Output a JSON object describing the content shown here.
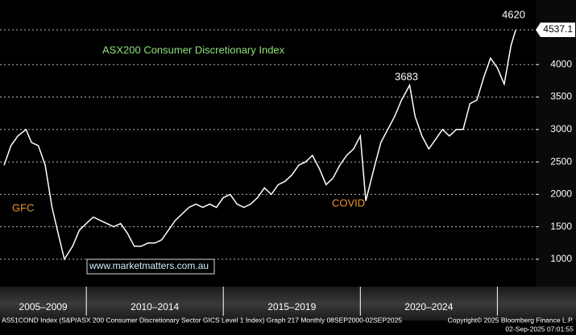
{
  "chart_data": {
    "type": "line",
    "title": "ASX200 Consumer Discretionary Index",
    "x": [
      2007.0,
      2007.25,
      2007.5,
      2007.8,
      2008.0,
      2008.25,
      2008.5,
      2008.75,
      2009.0,
      2009.2,
      2009.5,
      2009.75,
      2010.0,
      2010.25,
      2010.5,
      2010.75,
      2011.0,
      2011.25,
      2011.5,
      2011.75,
      2012.0,
      2012.25,
      2012.5,
      2012.75,
      2013.0,
      2013.25,
      2013.5,
      2013.75,
      2014.0,
      2014.25,
      2014.5,
      2014.75,
      2015.0,
      2015.25,
      2015.5,
      2015.75,
      2016.0,
      2016.25,
      2016.5,
      2016.75,
      2017.0,
      2017.25,
      2017.5,
      2017.75,
      2018.0,
      2018.25,
      2018.5,
      2018.75,
      2019.0,
      2019.25,
      2019.5,
      2019.75,
      2020.0,
      2020.2,
      2020.5,
      2020.75,
      2021.0,
      2021.25,
      2021.5,
      2021.8,
      2022.0,
      2022.25,
      2022.5,
      2022.75,
      2023.0,
      2023.25,
      2023.5,
      2023.75,
      2024.0,
      2024.25,
      2024.5,
      2024.75,
      2025.0,
      2025.25,
      2025.5,
      2025.67
    ],
    "series": [
      {
        "name": "AS51COND Index",
        "color": "#ffffff",
        "values": [
          2450,
          2750,
          2900,
          3000,
          2800,
          2750,
          2450,
          1800,
          1350,
          1000,
          1200,
          1450,
          1550,
          1650,
          1600,
          1550,
          1500,
          1550,
          1400,
          1200,
          1200,
          1250,
          1250,
          1300,
          1450,
          1600,
          1700,
          1800,
          1850,
          1800,
          1850,
          1800,
          1950,
          2000,
          1850,
          1800,
          1850,
          1950,
          2100,
          2000,
          2150,
          2200,
          2300,
          2450,
          2500,
          2600,
          2400,
          2150,
          2250,
          2450,
          2600,
          2700,
          2900,
          1900,
          2400,
          2800,
          3000,
          3200,
          3450,
          3683,
          3200,
          2900,
          2700,
          2850,
          3000,
          2900,
          3000,
          3000,
          3400,
          3450,
          3800,
          4100,
          3950,
          3700,
          4300,
          4537.1
        ]
      }
    ],
    "xlim": [
      2006.85,
      2026.4
    ],
    "xticks": [
      2010,
      2015,
      2020,
      2025
    ],
    "x_period_labels": [
      "2005–2009",
      "2010–2014",
      "2015–2019",
      "2020–2024"
    ],
    "ylim": [
      577,
      4996
    ],
    "yticks": [
      1000,
      1500,
      2000,
      2500,
      3000,
      3500,
      4000
    ],
    "grid": true,
    "last_value": 4537.1,
    "annotations": [
      {
        "text": "GFC",
        "color": "#f0952a"
      },
      {
        "text": "COVID",
        "color": "#f0952a"
      },
      {
        "text": "3683",
        "color": "#ffffff"
      },
      {
        "text": "4620",
        "color": "#ffffff"
      }
    ],
    "watermark": "www.marketmatters.com.au",
    "footer_left": "AS51COND Index (S&P/ASX 200 Consumer Discretionary Sector GICS Level 1 Index) Graph 217  Monthly 08SEP2000-02SEP2025",
    "footer_right": [
      "Copyright© 2025 Bloomberg Finance L.P.",
      "02-Sep-2025 07:01:55"
    ]
  }
}
